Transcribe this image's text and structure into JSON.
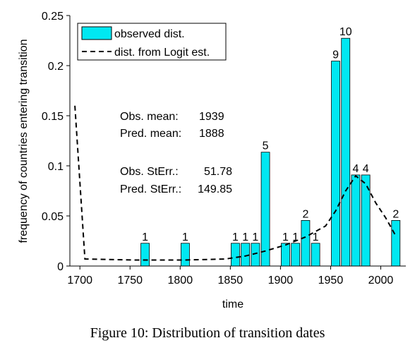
{
  "chart_data": {
    "type": "bar",
    "x_label": "time",
    "y_label": "frequency of countries entering transition",
    "xlim": [
      1690,
      2025
    ],
    "ylim": [
      0,
      0.25
    ],
    "xticks": [
      1700,
      1750,
      1800,
      1850,
      1900,
      1950,
      2000
    ],
    "yticks": [
      0,
      0.05,
      0.1,
      0.15,
      0.2,
      0.25
    ],
    "series": [
      {
        "name": "observed dist.",
        "type": "bar",
        "color": "#00e8f2",
        "x": [
          1765,
          1805,
          1855,
          1865,
          1875,
          1885,
          1905,
          1915,
          1925,
          1935,
          1955,
          1965,
          1975,
          1985,
          2015
        ],
        "values": [
          0.0227,
          0.0227,
          0.0227,
          0.0227,
          0.0227,
          0.1136,
          0.0227,
          0.0227,
          0.0455,
          0.0227,
          0.2045,
          0.2273,
          0.0909,
          0.0909,
          0.0455
        ],
        "counts": [
          1,
          1,
          1,
          1,
          1,
          5,
          1,
          1,
          2,
          1,
          9,
          10,
          4,
          4,
          2
        ]
      },
      {
        "name": "dist. from Logit est.",
        "type": "line",
        "color": "#000000",
        "x": [
          1695,
          1705,
          1755,
          1805,
          1845,
          1865,
          1885,
          1905,
          1925,
          1945,
          1955,
          1965,
          1975,
          1985,
          1995,
          2005,
          2015
        ],
        "values": [
          0.16,
          0.007,
          0.006,
          0.006,
          0.007,
          0.01,
          0.015,
          0.021,
          0.029,
          0.04,
          0.055,
          0.075,
          0.09,
          0.082,
          0.063,
          0.048,
          0.03
        ]
      }
    ],
    "annotations": [
      {
        "label": "Obs. mean:",
        "value": 1939
      },
      {
        "label": "Pred. mean:",
        "value": 1888
      },
      {
        "label": "Obs. StErr.:",
        "value": 51.78
      },
      {
        "label": "Pred. StErr.:",
        "value": 149.85
      }
    ],
    "caption": "Figure 10: Distribution of transition dates"
  }
}
